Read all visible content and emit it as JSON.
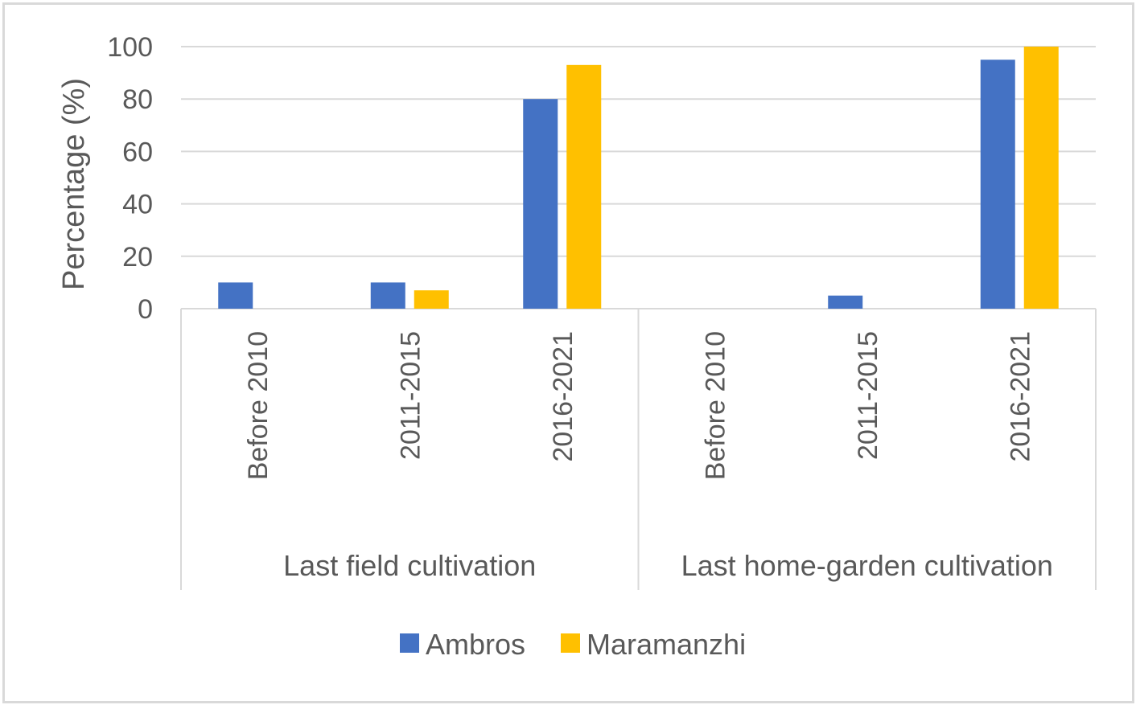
{
  "chart_data": {
    "type": "bar",
    "title": "",
    "xlabel": "",
    "ylabel": "Percentage (%)",
    "ylim": [
      0,
      100
    ],
    "yticks": [
      0,
      20,
      40,
      60,
      80,
      100
    ],
    "grid": true,
    "legend_position": "bottom",
    "groups": [
      {
        "label": "Last field cultivation",
        "categories": [
          "Before 2010",
          "2011-2015",
          "2016-2021"
        ]
      },
      {
        "label": "Last home-garden cultivation",
        "categories": [
          "Before 2010",
          "2011-2015",
          "2016-2021"
        ]
      }
    ],
    "series": [
      {
        "name": "Ambros",
        "color": "#4472c4",
        "values": [
          10,
          10,
          80,
          0,
          5,
          95
        ]
      },
      {
        "name": "Maramanzhi",
        "color": "#ffc000",
        "values": [
          0,
          7,
          93,
          0,
          0,
          100
        ]
      }
    ]
  }
}
